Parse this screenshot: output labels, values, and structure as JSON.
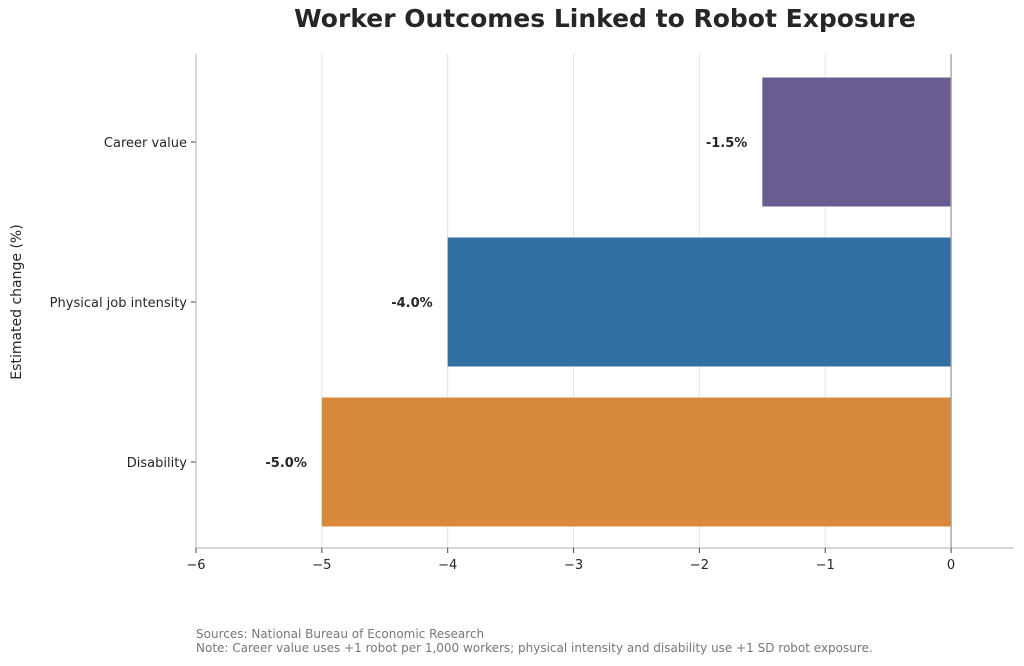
{
  "chart_data": {
    "type": "bar",
    "orientation": "horizontal",
    "title": "Worker Outcomes Linked to Robot Exposure",
    "xlabel": "",
    "ylabel": "Estimated change (%)",
    "categories": [
      "Career value",
      "Physical job intensity",
      "Disability"
    ],
    "values": [
      -1.5,
      -4.0,
      -5.0
    ],
    "data_labels": [
      "-1.5%",
      "-4.0%",
      "-5.0%"
    ],
    "colors": [
      "#6a5b93",
      "#3070a4",
      "#d8893b"
    ],
    "xlim": [
      -6,
      0.5
    ],
    "xticks": [
      -6,
      -5,
      -4,
      -3,
      -2,
      -1,
      0
    ],
    "xtick_labels": [
      "−6",
      "−5",
      "−4",
      "−3",
      "−2",
      "−1",
      "0"
    ],
    "grid": "vertical",
    "legend": "none"
  },
  "footnote": {
    "sources": "Sources: National Bureau of Economic Research",
    "note": "Note: Career value uses +1 robot per 1,000 workers; physical intensity and disability use +1 SD robot exposure."
  }
}
